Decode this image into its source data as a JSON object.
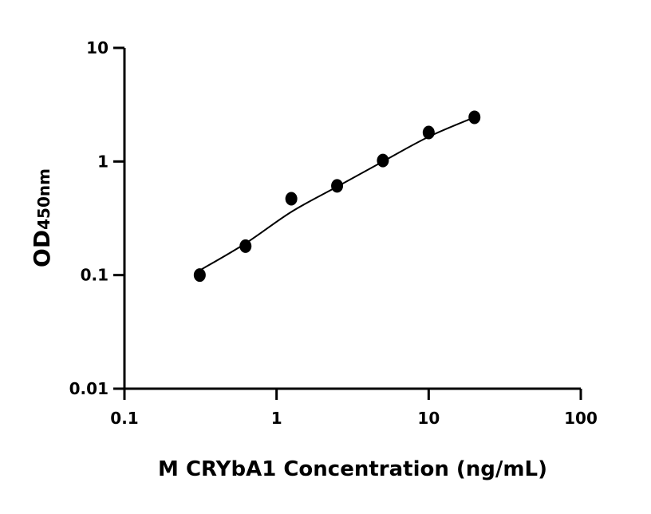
{
  "chart_data": {
    "type": "scatter",
    "title": "",
    "xlabel": "M CRYbA1 Concentration (ng/mL)",
    "ylabel_main": "OD",
    "ylabel_sub": "450nm",
    "x_scale": "log",
    "y_scale": "log",
    "xlim": [
      0.1,
      100
    ],
    "ylim": [
      0.01,
      10
    ],
    "x_ticks": [
      0.1,
      1,
      10,
      100
    ],
    "x_tick_labels": [
      "0.1",
      "1",
      "10",
      "100"
    ],
    "y_ticks": [
      0.01,
      0.1,
      1,
      10
    ],
    "y_tick_labels": [
      "0.01",
      "0.1",
      "1",
      "10"
    ],
    "grid": false,
    "marker_color": "#000000",
    "points": [
      {
        "x": 0.3125,
        "y": 0.1
      },
      {
        "x": 0.625,
        "y": 0.18
      },
      {
        "x": 1.25,
        "y": 0.47
      },
      {
        "x": 2.5,
        "y": 0.61
      },
      {
        "x": 5,
        "y": 1.02
      },
      {
        "x": 10,
        "y": 1.8
      },
      {
        "x": 20,
        "y": 2.45
      }
    ],
    "fit_curve": [
      {
        "x": 0.3125,
        "y": 0.11
      },
      {
        "x": 0.625,
        "y": 0.19
      },
      {
        "x": 1.25,
        "y": 0.36
      },
      {
        "x": 2.5,
        "y": 0.6
      },
      {
        "x": 5,
        "y": 1.0
      },
      {
        "x": 10,
        "y": 1.65
      },
      {
        "x": 20,
        "y": 2.45
      }
    ]
  }
}
